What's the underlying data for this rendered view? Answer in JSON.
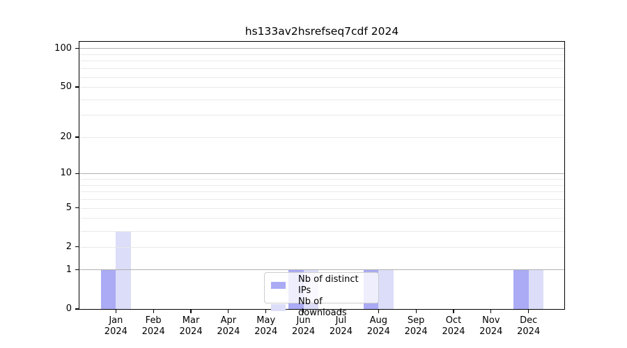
{
  "title": "hs133av2hsrefseq7cdf 2024",
  "legend": {
    "items": [
      {
        "label": "Nb of distinct IPs",
        "color": "#aaabf4"
      },
      {
        "label": "Nb of downloads",
        "color": "#dcddf8"
      }
    ]
  },
  "colors": {
    "distinct_ips": "#aaabf4",
    "downloads": "#dcddf8",
    "grid_major": "#b0b0b0",
    "grid_minor": "#e9e9e9",
    "axis_frame": "#000000",
    "legend_border": "#cccccc",
    "legend_background": "rgba(255,255,255,0.8)",
    "background": "#ffffff",
    "text": "#000000"
  },
  "chart_data": {
    "type": "bar",
    "title": "hs133av2hsrefseq7cdf 2024",
    "categories": [
      "Jan 2024",
      "Feb 2024",
      "Mar 2024",
      "Apr 2024",
      "May 2024",
      "Jun 2024",
      "Jul 2024",
      "Aug 2024",
      "Sep 2024",
      "Oct 2024",
      "Nov 2024",
      "Dec 2024"
    ],
    "series": [
      {
        "name": "Nb of distinct IPs",
        "color": "#aaabf4",
        "values": [
          1,
          0,
          0,
          0,
          0,
          1,
          0,
          1,
          0,
          0,
          0,
          1
        ]
      },
      {
        "name": "Nb of downloads",
        "color": "#dcddf8",
        "values": [
          3,
          0,
          0,
          0,
          0,
          1,
          0,
          1,
          0,
          0,
          0,
          1
        ]
      }
    ],
    "xlabel": "",
    "ylabel": "",
    "yscale": "log1p",
    "grid": true,
    "legend_position": "lower center",
    "y_axis": {
      "ticks": [
        {
          "value": 0,
          "label": "0"
        },
        {
          "value": 1,
          "label": "1"
        },
        {
          "value": 2,
          "label": "2"
        },
        {
          "value": 5,
          "label": "5"
        },
        {
          "value": 10,
          "label": "10"
        },
        {
          "value": 20,
          "label": "20"
        },
        {
          "value": 50,
          "label": "50"
        },
        {
          "value": 100,
          "label": "100"
        }
      ],
      "major_gridlines": [
        1,
        10,
        100
      ],
      "minor_gridlines": [
        2,
        3,
        4,
        5,
        6,
        7,
        8,
        9,
        20,
        30,
        40,
        50,
        60,
        70,
        80,
        90
      ],
      "range": [
        0,
        113
      ]
    }
  }
}
